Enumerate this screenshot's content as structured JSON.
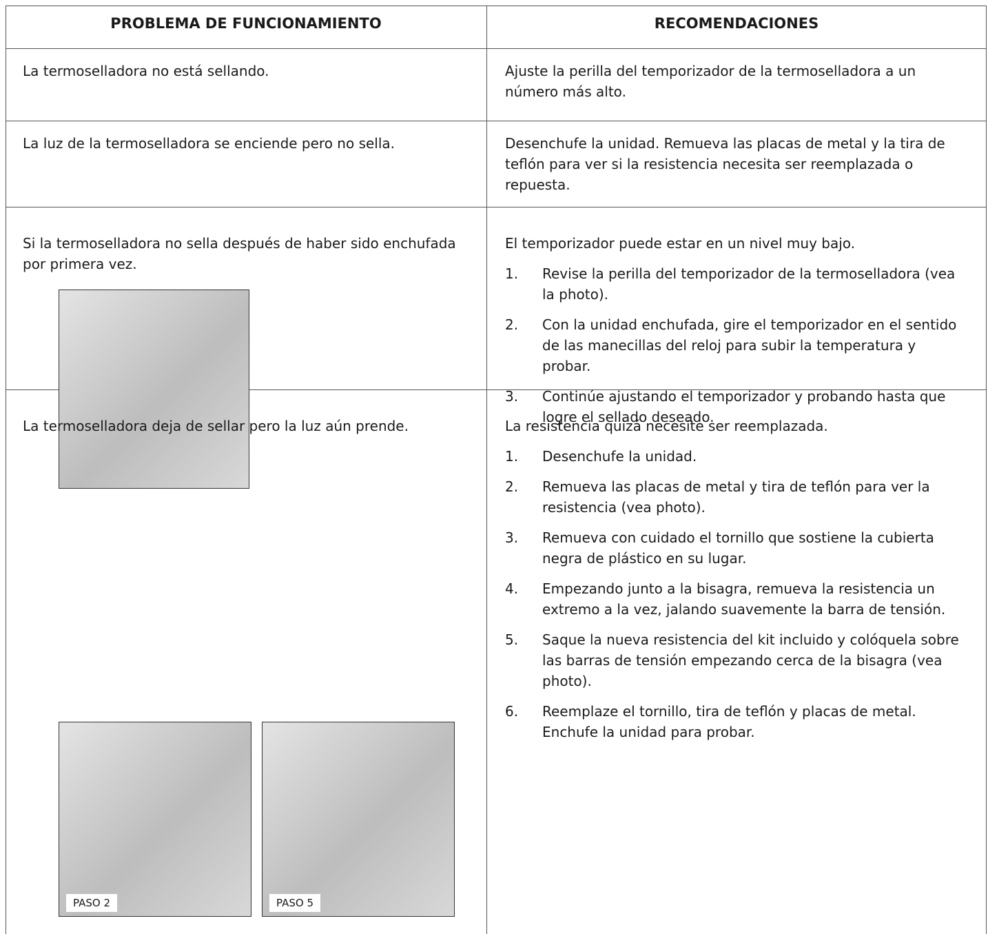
{
  "table": {
    "headers": [
      "PROBLEMA DE FUNCIONAMIENTO",
      "RECOMENDACIONES"
    ],
    "rows": [
      {
        "problem": "La termoselladora no está sellando.",
        "recommendation": "Ajuste la perilla del temporizador de la termoselladora a un número más alto."
      },
      {
        "problem": "La luz de la termoselladora se enciende pero no sella.",
        "recommendation": "Desenchufe la unidad.  Remueva las placas de metal y la tira de teflón para ver si la resistencia necesita ser reemplazada o repuesta."
      },
      {
        "problem": "Si la termoselladora no sella después de haber sido enchufada por primera vez.",
        "recommendation": "El temporizador puede estar en un nivel muy bajo.",
        "steps": [
          {
            "number": "1.",
            "text": "Revise la perilla del temporizador de la termoselladora (vea la photo)."
          },
          {
            "number": "2.",
            "text": "Con la unidad enchufada, gire el temporizador en el sentido de las manecillas del reloj para subir la temperatura y probar."
          },
          {
            "number": "3.",
            "text": "Continúe ajustando el temporizador y probando hasta que logre el sellado deseado."
          }
        ]
      },
      {
        "problem": "La termoselladora deja de sellar pero la luz aún prende.",
        "recommendation": "La resistencia quizá necesite ser reemplazada.",
        "steps": [
          {
            "number": "1.",
            "text": "Desenchufe la unidad."
          },
          {
            "number": "2.",
            "text": "Remueva las placas de metal y tira de teflón para ver la resistencia (vea photo)."
          },
          {
            "number": "3.",
            "text": "Remueva con cuidado el tornillo que sostiene la cubierta negra de plástico en su lugar."
          },
          {
            "number": "4.",
            "text": "Empezando junto a la bisagra, remueva la resistencia un extremo a la vez, jalando suavemente la barra de tensión."
          },
          {
            "number": "5.",
            "text": "Saque la nueva resistencia del kit incluido y colóquela sobre las barras de tensión empezando cerca de la bisagra (vea photo)."
          },
          {
            "number": "6.",
            "text": "Reemplaze el tornillo, tira de teflón y placas de metal.  Enchufe la unidad para probar."
          }
        ],
        "image_captions": [
          "PASO 2",
          "PASO 5"
        ]
      }
    ]
  }
}
